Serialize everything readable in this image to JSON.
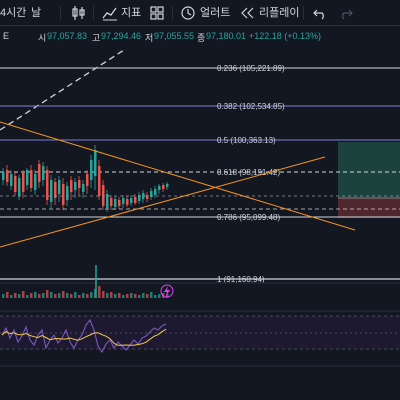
{
  "toolbar": {
    "interval_label": "4시간",
    "interval_option": "날",
    "indicators_label": "지표",
    "alert_label": "얼러트",
    "replay_label": "리플레이"
  },
  "legend": {
    "symbol_fragment": "E",
    "open_label": "시",
    "open_value": "97,057.83",
    "high_label": "고",
    "high_value": "97,294.46",
    "low_label": "저",
    "low_value": "97,055.55",
    "close_label": "종",
    "close_value": "97,180.01",
    "change_value": "+122.18 (+0.13%)"
  },
  "colors": {
    "background": "#131722",
    "up": "#26a69a",
    "down": "#ef5350",
    "fib_line": "#d1d4dc",
    "fib_level_line": "#787b86",
    "trendline": "#f7931a",
    "rsi_line": "#7e57c2",
    "rsi_ma": "#f7c948",
    "alert_icon": "#e040fb"
  },
  "fib_levels": [
    {
      "label": "0.236 (105,221.89)",
      "value": 105221.89
    },
    {
      "label": "0.382 (102,534.85)",
      "value": 102534.85
    },
    {
      "label": "0.5 (100,363.13)",
      "value": 100363.13
    },
    {
      "label": "0.618 (98,191.42)",
      "value": 98191.42
    },
    {
      "label": "0.786 (95,099.48)",
      "value": 95099.48
    },
    {
      "label": "1 (91,160.94)",
      "value": 91160.94
    }
  ],
  "icons": [
    "indicator-switch-icon",
    "chart-type-icon",
    "indicators-icon",
    "layout-grid-icon",
    "alert-clock-icon",
    "replay-icon",
    "undo-icon",
    "redo-icon",
    "alert-bolt-icon"
  ]
}
